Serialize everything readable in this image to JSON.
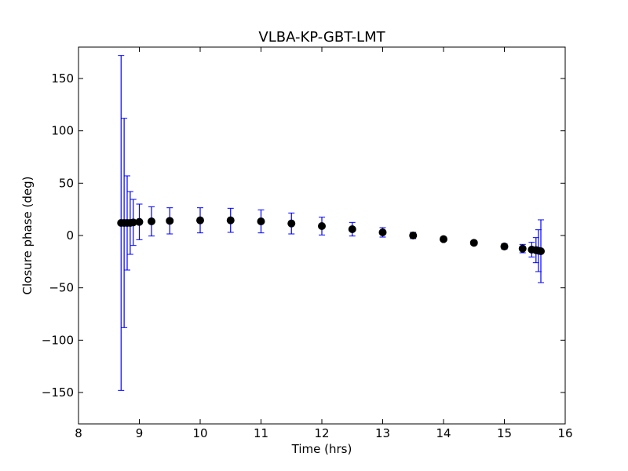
{
  "chart_data": {
    "type": "scatter",
    "title": "VLBA-KP-GBT-LMT",
    "xlabel": "Time (hrs)",
    "ylabel": "Closure phase (deg)",
    "xlim": [
      8,
      16
    ],
    "ylim": [
      -180,
      180
    ],
    "xticks": [
      8,
      9,
      10,
      11,
      12,
      13,
      14,
      15,
      16
    ],
    "xtick_labels": [
      "8",
      "9",
      "10",
      "11",
      "12",
      "13",
      "14",
      "15",
      "16"
    ],
    "yticks": [
      -150,
      -100,
      -50,
      0,
      50,
      100,
      150
    ],
    "ytick_labels": [
      "−150",
      "−100",
      "−50",
      "0",
      "50",
      "100",
      "150"
    ],
    "grid": false,
    "series": [
      {
        "marker": "circle",
        "color": "#000000",
        "errorbar_color": "#0000ff",
        "x": [
          8.7,
          8.75,
          8.8,
          8.85,
          8.9,
          9.0,
          9.2,
          9.5,
          10.0,
          10.5,
          11.0,
          11.5,
          12.0,
          12.5,
          13.0,
          13.5,
          14.0,
          14.5,
          15.0,
          15.3,
          15.45,
          15.52,
          15.56,
          15.6
        ],
        "y": [
          12,
          12,
          12,
          12,
          12.5,
          13,
          13.5,
          14,
          14.5,
          14.5,
          13.5,
          11.5,
          9,
          6,
          3,
          0,
          -3.5,
          -7,
          -10.5,
          -12.5,
          -13.5,
          -14,
          -14.5,
          -15
        ],
        "err": [
          160,
          100,
          45,
          30,
          22,
          17,
          14,
          12.5,
          12,
          11.5,
          11,
          10,
          8.5,
          6.5,
          4.5,
          3,
          2,
          2,
          2.5,
          4,
          7,
          12,
          20,
          30
        ]
      }
    ]
  }
}
